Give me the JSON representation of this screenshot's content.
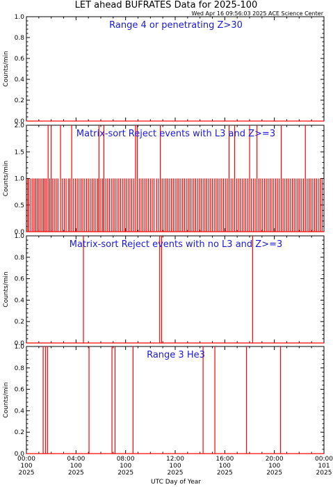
{
  "title": "LET ahead BUFRATES Data for 2025-100",
  "timestamp": "Wed Apr 16 09:56:03 2025 ACE Science Center",
  "xlabel": "UTC Day of Year",
  "colors": {
    "trace": "#ff0000",
    "panel_label": "#1a1ad6",
    "axes": "#000000"
  },
  "x_ticks": [
    {
      "time": "00:00",
      "doy": "100",
      "year": "2025"
    },
    {
      "time": "04:00",
      "doy": "100",
      "year": "2025"
    },
    {
      "time": "08:00",
      "doy": "100",
      "year": "2025"
    },
    {
      "time": "12:00",
      "doy": "100",
      "year": "2025"
    },
    {
      "time": "16:00",
      "doy": "100",
      "year": "2025"
    },
    {
      "time": "20:00",
      "doy": "100",
      "year": "2025"
    },
    {
      "time": "00:00",
      "doy": "101",
      "year": "2025"
    }
  ],
  "chart_data": [
    {
      "type": "line",
      "title": "Range 4 or   penetrating Z>30",
      "ylabel": "Counts/min",
      "ylim": [
        0,
        1.0
      ],
      "yticks": [
        "0.0",
        "0.2",
        "0.4",
        "0.6",
        "0.8",
        "1.0"
      ],
      "xlim_hours": [
        0,
        24
      ],
      "baseline": 0,
      "spikes": []
    },
    {
      "type": "line",
      "title": "Matrix-sort Reject events with L3 and Z>=3",
      "ylabel": "Counts/min",
      "ylim": [
        0,
        2.0
      ],
      "yticks": [
        "0.0",
        "0.5",
        "1.0",
        "1.5",
        "2.0"
      ],
      "xlim_hours": [
        0,
        24
      ],
      "baseline": 0,
      "spikes": [
        {
          "t": 0.1,
          "v": 1
        },
        {
          "t": 0.2,
          "v": 1
        },
        {
          "t": 0.35,
          "v": 1
        },
        {
          "t": 0.5,
          "v": 1
        },
        {
          "t": 0.62,
          "v": 1
        },
        {
          "t": 0.75,
          "v": 1
        },
        {
          "t": 0.88,
          "v": 1
        },
        {
          "t": 1.0,
          "v": 1
        },
        {
          "t": 1.12,
          "v": 1
        },
        {
          "t": 1.25,
          "v": 1
        },
        {
          "t": 1.38,
          "v": 1
        },
        {
          "t": 1.5,
          "v": 1
        },
        {
          "t": 1.62,
          "v": 1
        },
        {
          "t": 1.75,
          "v": 2
        },
        {
          "t": 1.88,
          "v": 1
        },
        {
          "t": 2.0,
          "v": 2
        },
        {
          "t": 2.12,
          "v": 1
        },
        {
          "t": 2.25,
          "v": 1
        },
        {
          "t": 2.4,
          "v": 1
        },
        {
          "t": 2.55,
          "v": 1
        },
        {
          "t": 2.75,
          "v": 2
        },
        {
          "t": 2.9,
          "v": 1
        },
        {
          "t": 3.05,
          "v": 1
        },
        {
          "t": 3.2,
          "v": 1
        },
        {
          "t": 3.38,
          "v": 1
        },
        {
          "t": 3.5,
          "v": 1
        },
        {
          "t": 3.65,
          "v": 2
        },
        {
          "t": 3.8,
          "v": 1
        },
        {
          "t": 3.95,
          "v": 1
        },
        {
          "t": 4.1,
          "v": 1
        },
        {
          "t": 4.25,
          "v": 1
        },
        {
          "t": 4.4,
          "v": 1
        },
        {
          "t": 4.55,
          "v": 1
        },
        {
          "t": 4.7,
          "v": 1
        },
        {
          "t": 4.85,
          "v": 1
        },
        {
          "t": 5.0,
          "v": 1
        },
        {
          "t": 5.15,
          "v": 1
        },
        {
          "t": 5.3,
          "v": 1
        },
        {
          "t": 5.45,
          "v": 1
        },
        {
          "t": 5.6,
          "v": 1
        },
        {
          "t": 5.75,
          "v": 1
        },
        {
          "t": 5.85,
          "v": 2
        },
        {
          "t": 6.0,
          "v": 1
        },
        {
          "t": 6.15,
          "v": 1
        },
        {
          "t": 6.25,
          "v": 2
        },
        {
          "t": 6.4,
          "v": 1
        },
        {
          "t": 6.55,
          "v": 1
        },
        {
          "t": 6.7,
          "v": 1
        },
        {
          "t": 6.85,
          "v": 1
        },
        {
          "t": 7.0,
          "v": 1
        },
        {
          "t": 7.15,
          "v": 1
        },
        {
          "t": 7.3,
          "v": 1
        },
        {
          "t": 7.45,
          "v": 1
        },
        {
          "t": 7.6,
          "v": 1
        },
        {
          "t": 7.75,
          "v": 1
        },
        {
          "t": 7.9,
          "v": 1
        },
        {
          "t": 8.05,
          "v": 1
        },
        {
          "t": 8.2,
          "v": 1
        },
        {
          "t": 8.35,
          "v": 1
        },
        {
          "t": 8.5,
          "v": 1
        },
        {
          "t": 8.65,
          "v": 1
        },
        {
          "t": 8.8,
          "v": 2
        },
        {
          "t": 8.95,
          "v": 2
        },
        {
          "t": 9.1,
          "v": 1
        },
        {
          "t": 9.25,
          "v": 1
        },
        {
          "t": 9.4,
          "v": 1
        },
        {
          "t": 9.55,
          "v": 1
        },
        {
          "t": 9.7,
          "v": 1
        },
        {
          "t": 9.85,
          "v": 1
        },
        {
          "t": 10.0,
          "v": 1
        },
        {
          "t": 10.15,
          "v": 1
        },
        {
          "t": 10.3,
          "v": 1
        },
        {
          "t": 10.5,
          "v": 1
        },
        {
          "t": 10.65,
          "v": 1
        },
        {
          "t": 10.8,
          "v": 2
        },
        {
          "t": 10.95,
          "v": 1
        },
        {
          "t": 11.1,
          "v": 1
        },
        {
          "t": 11.25,
          "v": 1
        },
        {
          "t": 11.4,
          "v": 1
        },
        {
          "t": 11.55,
          "v": 1
        },
        {
          "t": 11.7,
          "v": 1
        },
        {
          "t": 11.85,
          "v": 1
        },
        {
          "t": 12.0,
          "v": 1
        },
        {
          "t": 12.15,
          "v": 1
        },
        {
          "t": 12.3,
          "v": 1
        },
        {
          "t": 12.45,
          "v": 1
        },
        {
          "t": 12.6,
          "v": 1
        },
        {
          "t": 12.75,
          "v": 1
        },
        {
          "t": 12.9,
          "v": 1
        },
        {
          "t": 13.05,
          "v": 1
        },
        {
          "t": 13.2,
          "v": 1
        },
        {
          "t": 13.35,
          "v": 1
        },
        {
          "t": 13.5,
          "v": 1
        },
        {
          "t": 13.65,
          "v": 1
        },
        {
          "t": 13.8,
          "v": 1
        },
        {
          "t": 13.95,
          "v": 1
        },
        {
          "t": 14.1,
          "v": 1
        },
        {
          "t": 14.25,
          "v": 1
        },
        {
          "t": 14.4,
          "v": 1
        },
        {
          "t": 14.55,
          "v": 1
        },
        {
          "t": 14.7,
          "v": 1
        },
        {
          "t": 14.85,
          "v": 1
        },
        {
          "t": 15.0,
          "v": 1
        },
        {
          "t": 15.15,
          "v": 1
        },
        {
          "t": 15.3,
          "v": 1
        },
        {
          "t": 15.45,
          "v": 1
        },
        {
          "t": 15.6,
          "v": 1
        },
        {
          "t": 15.75,
          "v": 1
        },
        {
          "t": 15.9,
          "v": 1
        },
        {
          "t": 16.05,
          "v": 1
        },
        {
          "t": 16.2,
          "v": 1
        },
        {
          "t": 16.35,
          "v": 2
        },
        {
          "t": 16.5,
          "v": 1
        },
        {
          "t": 16.65,
          "v": 1
        },
        {
          "t": 16.8,
          "v": 2
        },
        {
          "t": 16.95,
          "v": 1
        },
        {
          "t": 17.1,
          "v": 1
        },
        {
          "t": 17.25,
          "v": 1
        },
        {
          "t": 17.4,
          "v": 1
        },
        {
          "t": 17.55,
          "v": 1
        },
        {
          "t": 17.7,
          "v": 1
        },
        {
          "t": 17.85,
          "v": 1
        },
        {
          "t": 18.0,
          "v": 2
        },
        {
          "t": 18.15,
          "v": 1
        },
        {
          "t": 18.3,
          "v": 1
        },
        {
          "t": 18.45,
          "v": 1
        },
        {
          "t": 18.6,
          "v": 2
        },
        {
          "t": 18.75,
          "v": 1
        },
        {
          "t": 18.9,
          "v": 1
        },
        {
          "t": 19.05,
          "v": 1
        },
        {
          "t": 19.2,
          "v": 1
        },
        {
          "t": 19.35,
          "v": 1
        },
        {
          "t": 19.5,
          "v": 1
        },
        {
          "t": 19.65,
          "v": 1
        },
        {
          "t": 19.8,
          "v": 1
        },
        {
          "t": 19.95,
          "v": 1
        },
        {
          "t": 20.1,
          "v": 1
        },
        {
          "t": 20.25,
          "v": 1
        },
        {
          "t": 20.4,
          "v": 1
        },
        {
          "t": 20.55,
          "v": 2
        },
        {
          "t": 20.7,
          "v": 1
        },
        {
          "t": 20.85,
          "v": 1
        },
        {
          "t": 21.0,
          "v": 1
        },
        {
          "t": 21.15,
          "v": 1
        },
        {
          "t": 21.3,
          "v": 1
        },
        {
          "t": 21.45,
          "v": 1
        },
        {
          "t": 21.6,
          "v": 1
        },
        {
          "t": 21.75,
          "v": 1
        },
        {
          "t": 21.9,
          "v": 1
        },
        {
          "t": 22.05,
          "v": 1
        },
        {
          "t": 22.2,
          "v": 1
        },
        {
          "t": 22.35,
          "v": 1
        },
        {
          "t": 22.5,
          "v": 2
        },
        {
          "t": 22.65,
          "v": 1
        },
        {
          "t": 22.8,
          "v": 1
        },
        {
          "t": 22.95,
          "v": 1
        },
        {
          "t": 23.1,
          "v": 1
        },
        {
          "t": 23.25,
          "v": 1
        },
        {
          "t": 23.4,
          "v": 1
        },
        {
          "t": 23.55,
          "v": 1
        },
        {
          "t": 23.7,
          "v": 1
        },
        {
          "t": 23.85,
          "v": 1
        }
      ]
    },
    {
      "type": "line",
      "title": "Matrix-sort Reject events with no L3 and Z>=3",
      "ylabel": "Counts/min",
      "ylim": [
        0,
        1.0
      ],
      "yticks": [
        "0.0",
        "0.2",
        "0.4",
        "0.6",
        "0.8",
        "1.0"
      ],
      "xlim_hours": [
        0,
        24
      ],
      "baseline": 0,
      "spikes": [
        {
          "t": 4.6,
          "v": 1
        },
        {
          "t": 10.75,
          "v": 1
        },
        {
          "t": 10.9,
          "v": 1
        },
        {
          "t": 18.25,
          "v": 1
        }
      ]
    },
    {
      "type": "line",
      "title": "Range 3 He3",
      "ylabel": "Counts/min",
      "ylim": [
        0,
        1.0
      ],
      "yticks": [
        "0.0",
        "0.2",
        "0.4",
        "0.6",
        "0.8",
        "1.0"
      ],
      "xlim_hours": [
        0,
        24
      ],
      "baseline": 0,
      "spikes": [
        {
          "t": 1.35,
          "v": 1
        },
        {
          "t": 1.55,
          "v": 1
        },
        {
          "t": 1.7,
          "v": 1
        },
        {
          "t": 5.05,
          "v": 1
        },
        {
          "t": 6.9,
          "v": 1
        },
        {
          "t": 7.15,
          "v": 1
        },
        {
          "t": 8.6,
          "v": 1
        },
        {
          "t": 14.25,
          "v": 1
        },
        {
          "t": 15.2,
          "v": 1
        },
        {
          "t": 17.75,
          "v": 1
        },
        {
          "t": 20.5,
          "v": 1
        }
      ]
    }
  ]
}
